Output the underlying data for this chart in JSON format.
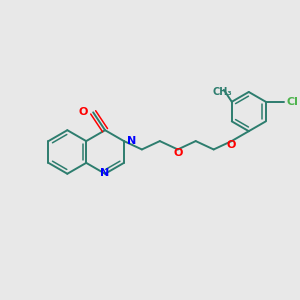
{
  "background_color": "#e8e8e8",
  "bond_color": "#2d7d6e",
  "nitrogen_color": "#0000ff",
  "oxygen_color": "#ff0000",
  "chlorine_color": "#4db34d",
  "figsize": [
    3.0,
    3.0
  ],
  "dpi": 100,
  "xlim": [
    0,
    300
  ],
  "ylim": [
    0,
    300
  ]
}
